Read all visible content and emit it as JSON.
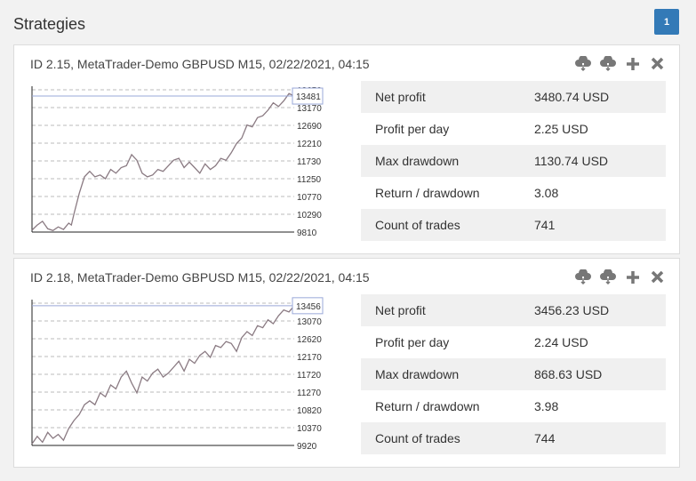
{
  "page": {
    "title": "Strategies",
    "badge": "1"
  },
  "cards": [
    {
      "header": "ID 2.15, MetaTrader-Demo GBPUSD M15, 02/22/2021, 04:15",
      "stats": [
        {
          "label": "Net profit",
          "value": "3480.74 USD"
        },
        {
          "label": "Profit per day",
          "value": "2.25 USD"
        },
        {
          "label": "Max drawdown",
          "value": "1130.74 USD"
        },
        {
          "label": "Return / drawdown",
          "value": "3.08"
        },
        {
          "label": "Count of trades",
          "value": "741"
        }
      ]
    },
    {
      "header": "ID 2.18, MetaTrader-Demo GBPUSD M15, 02/22/2021, 04:15",
      "stats": [
        {
          "label": "Net profit",
          "value": "3456.23 USD"
        },
        {
          "label": "Profit per day",
          "value": "2.24 USD"
        },
        {
          "label": "Max drawdown",
          "value": "868.63 USD"
        },
        {
          "label": "Return / drawdown",
          "value": "3.98"
        },
        {
          "label": "Count of trades",
          "value": "744"
        }
      ]
    }
  ],
  "icons": [
    "cloud-download-icon",
    "cloud-download-icon",
    "plus-icon",
    "close-icon"
  ],
  "colors": {
    "accent": "#337ab7",
    "line": "#8a7a82",
    "grid": "#bbbbbb"
  },
  "chart_data": [
    {
      "type": "line",
      "ylim": [
        9810,
        13650
      ],
      "yticks": [
        9810,
        10290,
        10770,
        11250,
        11730,
        12210,
        12690,
        13170,
        13650
      ],
      "last_value_label": "13481",
      "x": [
        0,
        10,
        20,
        30,
        40,
        50,
        60,
        70,
        75,
        80,
        90,
        100,
        110,
        120,
        130,
        140,
        150,
        160,
        170,
        180,
        190,
        200,
        210,
        220,
        230,
        240,
        250,
        260,
        270,
        280,
        290,
        300,
        310,
        320,
        330,
        340,
        350,
        360,
        370,
        380,
        390,
        400,
        410,
        420,
        430,
        440,
        450,
        460,
        470,
        480,
        490,
        500
      ],
      "values": [
        9860,
        10000,
        10100,
        9900,
        9850,
        9950,
        9880,
        10050,
        10000,
        10300,
        10850,
        11300,
        11450,
        11300,
        11350,
        11250,
        11500,
        11400,
        11550,
        11600,
        11900,
        11750,
        11400,
        11300,
        11350,
        11500,
        11450,
        11600,
        11750,
        11800,
        11550,
        11700,
        11550,
        11400,
        11650,
        11500,
        11600,
        11800,
        11750,
        11950,
        12200,
        12350,
        12700,
        12650,
        12900,
        12950,
        13100,
        13300,
        13200,
        13350,
        13550,
        13481
      ]
    },
    {
      "type": "line",
      "ylim": [
        9920,
        13520
      ],
      "yticks": [
        9920,
        10370,
        10820,
        11270,
        11720,
        12170,
        12620,
        13070,
        13520
      ],
      "last_value_label": "13456",
      "x": [
        0,
        10,
        20,
        30,
        40,
        50,
        60,
        70,
        75,
        80,
        90,
        100,
        110,
        120,
        130,
        140,
        150,
        160,
        170,
        180,
        190,
        200,
        210,
        220,
        230,
        240,
        250,
        260,
        270,
        280,
        290,
        300,
        310,
        320,
        330,
        340,
        350,
        360,
        370,
        380,
        390,
        400,
        410,
        420,
        430,
        440,
        450,
        460,
        470,
        480,
        490,
        500
      ],
      "values": [
        9960,
        10150,
        10000,
        10250,
        10100,
        10200,
        10050,
        10350,
        10450,
        10550,
        10700,
        10950,
        11050,
        10950,
        11250,
        11150,
        11450,
        11350,
        11650,
        11800,
        11500,
        11250,
        11650,
        11550,
        11750,
        11850,
        11650,
        11750,
        11900,
        12050,
        11800,
        12100,
        12000,
        12200,
        12300,
        12150,
        12450,
        12400,
        12550,
        12500,
        12300,
        12650,
        12800,
        12700,
        12950,
        12900,
        13100,
        13000,
        13200,
        13350,
        13300,
        13456
      ]
    }
  ]
}
